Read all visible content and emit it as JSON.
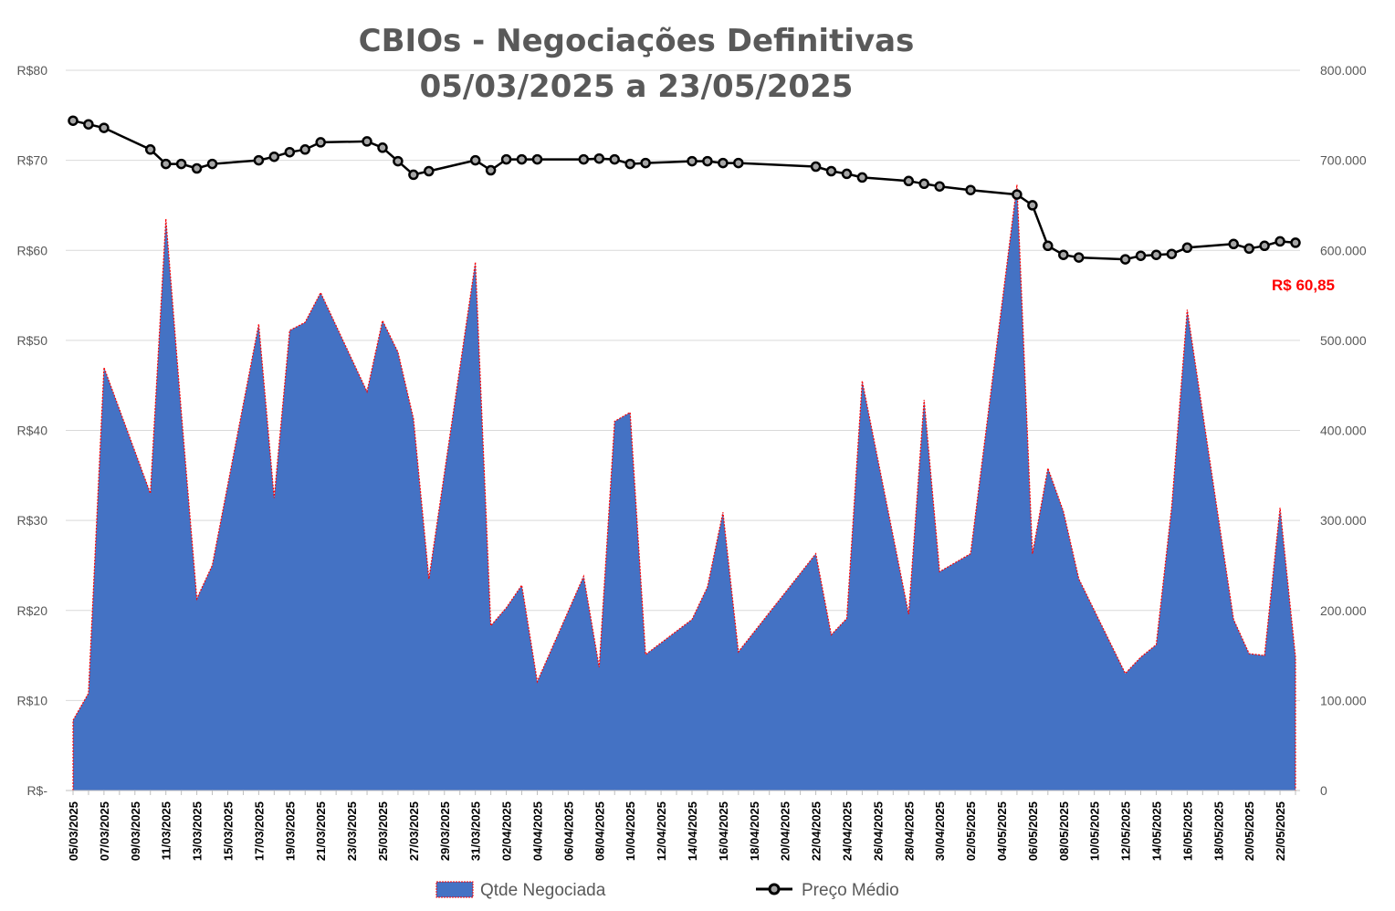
{
  "chart_data": {
    "type": "area+line",
    "title_line1": "CBIOs - Negociações Definitivas",
    "title_line2": "05/03/2025 a 23/05/2025",
    "y_left": {
      "min": 0,
      "max": 80,
      "step": 10,
      "tick_labels": [
        "R$-",
        "R$10",
        "R$20",
        "R$30",
        "R$40",
        "R$50",
        "R$60",
        "R$70",
        "R$80"
      ]
    },
    "y_right": {
      "min": 0,
      "max": 800000,
      "step": 100000,
      "tick_labels": [
        "0",
        "100.000",
        "200.000",
        "300.000",
        "400.000",
        "500.000",
        "600.000",
        "700.000",
        "800.000"
      ]
    },
    "x_range": [
      "05/03/2025",
      "23/05/2025"
    ],
    "x_tick_labels": [
      "05/03/2025",
      "07/03/2025",
      "09/03/2025",
      "11/03/2025",
      "13/03/2025",
      "15/03/2025",
      "17/03/2025",
      "19/03/2025",
      "21/03/2025",
      "23/03/2025",
      "25/03/2025",
      "27/03/2025",
      "29/03/2025",
      "31/03/2025",
      "02/04/2025",
      "04/04/2025",
      "06/04/2025",
      "08/04/2025",
      "10/04/2025",
      "12/04/2025",
      "14/04/2025",
      "16/04/2025",
      "18/04/2025",
      "20/04/2025",
      "22/04/2025",
      "24/04/2025",
      "26/04/2025",
      "28/04/2025",
      "30/04/2025",
      "02/05/2025",
      "04/05/2025",
      "06/05/2025",
      "08/05/2025",
      "10/05/2025",
      "12/05/2025",
      "14/05/2025",
      "16/05/2025",
      "18/05/2025",
      "20/05/2025",
      "22/05/2025"
    ],
    "grid": true,
    "legend_position": "bottom",
    "annotation": {
      "text": "R$ 60,85",
      "color": "#ff0000"
    },
    "colors": {
      "area_fill": "#4472c4",
      "area_border": "#ff0000",
      "line": "#000000",
      "marker_fill": "#a6a6a6",
      "grid": "#d9d9d9",
      "text": "#595959"
    },
    "series": [
      {
        "name": "Qtde Negociada",
        "type": "area",
        "axis": "right",
        "x": [
          "05/03/2025",
          "06/03/2025",
          "07/03/2025",
          "10/03/2025",
          "11/03/2025",
          "12/03/2025",
          "13/03/2025",
          "14/03/2025",
          "17/03/2025",
          "18/03/2025",
          "19/03/2025",
          "20/03/2025",
          "21/03/2025",
          "24/03/2025",
          "25/03/2025",
          "26/03/2025",
          "27/03/2025",
          "28/03/2025",
          "31/03/2025",
          "01/04/2025",
          "02/04/2025",
          "03/04/2025",
          "04/04/2025",
          "07/04/2025",
          "08/04/2025",
          "09/04/2025",
          "10/04/2025",
          "11/04/2025",
          "14/04/2025",
          "15/04/2025",
          "16/04/2025",
          "17/04/2025",
          "22/04/2025",
          "23/04/2025",
          "24/04/2025",
          "25/04/2025",
          "28/04/2025",
          "29/04/2025",
          "30/04/2025",
          "02/05/2025",
          "05/05/2025",
          "06/05/2025",
          "07/05/2025",
          "08/05/2025",
          "09/05/2025",
          "12/05/2025",
          "13/05/2025",
          "14/05/2025",
          "15/05/2025",
          "16/05/2025",
          "19/05/2025",
          "20/05/2025",
          "21/05/2025",
          "22/05/2025",
          "23/05/2025"
        ],
        "values": [
          78000,
          108000,
          470000,
          330000,
          635000,
          420000,
          213000,
          250000,
          518000,
          325000,
          511000,
          520000,
          553000,
          443000,
          522000,
          487000,
          413000,
          235000,
          587000,
          183000,
          203000,
          228000,
          121000,
          238000,
          137000,
          410000,
          420000,
          151000,
          190000,
          226000,
          309000,
          154000,
          263000,
          173000,
          191000,
          455000,
          196000,
          434000,
          243000,
          263000,
          673000,
          263000,
          358000,
          310000,
          235000,
          130000,
          148000,
          162000,
          315000,
          534000,
          190000,
          152000,
          150000,
          314000,
          148000
        ]
      },
      {
        "name": "Preço Médio",
        "type": "line",
        "axis": "left",
        "x": [
          "05/03/2025",
          "06/03/2025",
          "07/03/2025",
          "10/03/2025",
          "11/03/2025",
          "12/03/2025",
          "13/03/2025",
          "14/03/2025",
          "17/03/2025",
          "18/03/2025",
          "19/03/2025",
          "20/03/2025",
          "21/03/2025",
          "24/03/2025",
          "25/03/2025",
          "26/03/2025",
          "27/03/2025",
          "28/03/2025",
          "31/03/2025",
          "01/04/2025",
          "02/04/2025",
          "03/04/2025",
          "04/04/2025",
          "07/04/2025",
          "08/04/2025",
          "09/04/2025",
          "10/04/2025",
          "11/04/2025",
          "14/04/2025",
          "15/04/2025",
          "16/04/2025",
          "17/04/2025",
          "22/04/2025",
          "23/04/2025",
          "24/04/2025",
          "25/04/2025",
          "28/04/2025",
          "29/04/2025",
          "30/04/2025",
          "02/05/2025",
          "05/05/2025",
          "06/05/2025",
          "07/05/2025",
          "08/05/2025",
          "09/05/2025",
          "12/05/2025",
          "13/05/2025",
          "14/05/2025",
          "15/05/2025",
          "16/05/2025",
          "19/05/2025",
          "20/05/2025",
          "21/05/2025",
          "22/05/2025",
          "23/05/2025"
        ],
        "values": [
          74.4,
          74.0,
          73.6,
          71.2,
          69.6,
          69.6,
          69.1,
          69.6,
          70.0,
          70.4,
          70.9,
          71.2,
          72.0,
          72.1,
          71.4,
          69.9,
          68.4,
          68.8,
          70.0,
          68.9,
          70.1,
          70.1,
          70.1,
          70.1,
          70.2,
          70.1,
          69.6,
          69.7,
          69.9,
          69.9,
          69.7,
          69.7,
          69.3,
          68.8,
          68.5,
          68.1,
          67.7,
          67.4,
          67.1,
          66.7,
          66.2,
          65.0,
          60.5,
          59.5,
          59.2,
          59.0,
          59.4,
          59.5,
          59.6,
          60.3,
          60.7,
          60.2,
          60.5,
          61.0,
          60.85
        ]
      }
    ]
  }
}
